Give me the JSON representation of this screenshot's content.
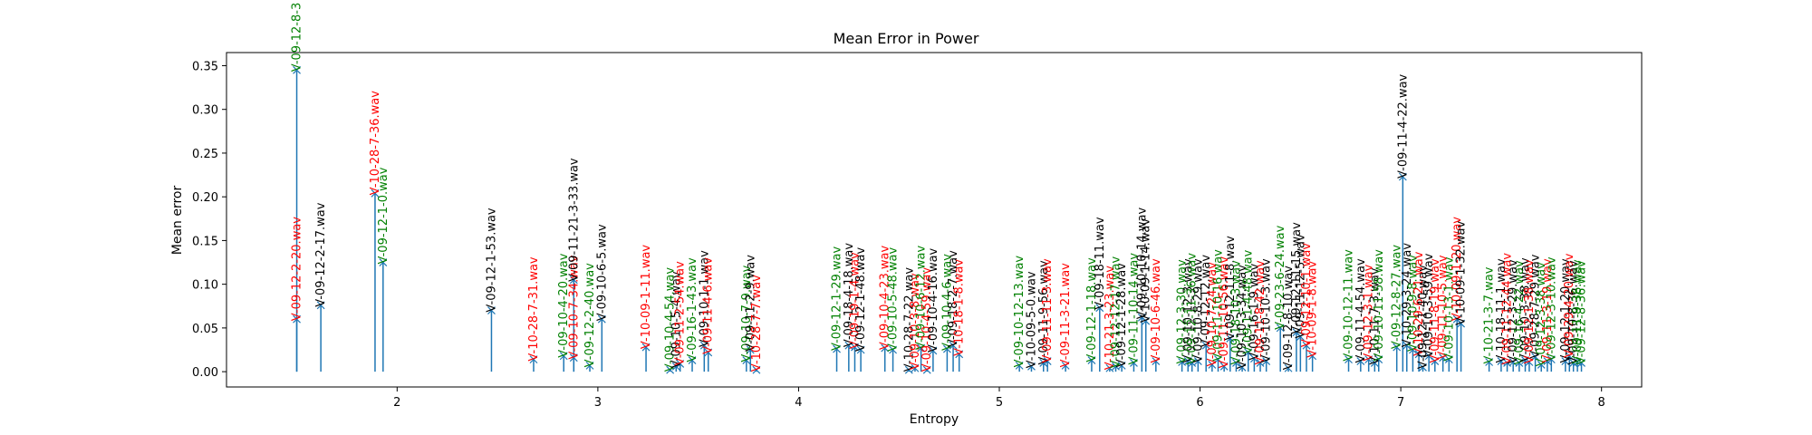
{
  "chart_data": {
    "type": "stem",
    "title": "Mean Error in Power",
    "xlabel": "Entropy",
    "ylabel": "Mean error",
    "xlim": [
      1.15,
      8.2
    ],
    "ylim": [
      -0.0175,
      0.365
    ],
    "xticks": [
      2,
      3,
      4,
      5,
      6,
      7,
      8
    ],
    "yticks": [
      "0.00",
      "0.05",
      "0.10",
      "0.15",
      "0.20",
      "0.25",
      "0.30",
      "0.35"
    ],
    "colors": {
      "stem": "#1f77b4",
      "marker": "#1f77b4"
    },
    "points": [
      {
        "x": 1.5,
        "y": 0.345,
        "label": "V-09-12-8-3",
        "color": "green"
      },
      {
        "x": 1.5,
        "y": 0.06,
        "label": "V-09-12-2-20.wav",
        "color": "red"
      },
      {
        "x": 1.62,
        "y": 0.076,
        "label": "V-09-12-2-17.wav",
        "color": "black"
      },
      {
        "x": 1.89,
        "y": 0.204,
        "label": "V-10-28-7-36.wav",
        "color": "red"
      },
      {
        "x": 1.93,
        "y": 0.125,
        "label": "V-09-12-1-0.wav",
        "color": "green"
      },
      {
        "x": 2.47,
        "y": 0.07,
        "label": "V-09-12-1-53.wav",
        "color": "black"
      },
      {
        "x": 2.68,
        "y": 0.014,
        "label": "V-10-28-7-31.wav",
        "color": "red"
      },
      {
        "x": 2.83,
        "y": 0.018,
        "label": "V-09-10-4-20.wav",
        "color": "green"
      },
      {
        "x": 2.88,
        "y": 0.016,
        "label": "V-09-10-7-34.wav",
        "color": "red"
      },
      {
        "x": 2.88,
        "y": 0.105,
        "label": "V-09-11-21-3-33.wav",
        "color": "black"
      },
      {
        "x": 2.96,
        "y": 0.007,
        "label": "V-09-12-2-40.wav",
        "color": "green"
      },
      {
        "x": 3.02,
        "y": 0.06,
        "label": "V-09-10-6-5.wav",
        "color": "black"
      },
      {
        "x": 3.24,
        "y": 0.028,
        "label": "V-10-09-1-11.wav",
        "color": "red"
      },
      {
        "x": 3.36,
        "y": 0.002,
        "label": "V-09-10-4-54.wav",
        "color": "green"
      },
      {
        "x": 3.39,
        "y": 0.006,
        "label": "V-09-10-5-4.wav",
        "color": "black"
      },
      {
        "x": 3.41,
        "y": 0.009,
        "label": "V-09-11-2-54.wav",
        "color": "red"
      },
      {
        "x": 3.47,
        "y": 0.013,
        "label": "V-09-16-1-43.wav",
        "color": "green"
      },
      {
        "x": 3.53,
        "y": 0.03,
        "label": "V-09-10-1-1.wav",
        "color": "black"
      },
      {
        "x": 3.55,
        "y": 0.022,
        "label": "V-09-11-4-6.wav",
        "color": "red"
      },
      {
        "x": 3.74,
        "y": 0.013,
        "label": "V-09-10-7-9.wav",
        "color": "green"
      },
      {
        "x": 3.76,
        "y": 0.025,
        "label": "V-09-11-2-9.wav",
        "color": "black"
      },
      {
        "x": 3.79,
        "y": 0.002,
        "label": "V-10-28-7-7.wav",
        "color": "red"
      },
      {
        "x": 4.19,
        "y": 0.026,
        "label": "V-09-12-1-29.wav",
        "color": "green"
      },
      {
        "x": 4.25,
        "y": 0.03,
        "label": "V-09-18-4-18.wav",
        "color": "black"
      },
      {
        "x": 4.28,
        "y": 0.028,
        "label": "V-09-19-1-4.wav",
        "color": "red"
      },
      {
        "x": 4.31,
        "y": 0.025,
        "label": "V-09-12-1-48.wav",
        "color": "black"
      },
      {
        "x": 4.43,
        "y": 0.027,
        "label": "V-09-10-4-23.wav",
        "color": "red"
      },
      {
        "x": 4.47,
        "y": 0.025,
        "label": "V-09-10-5-48.wav",
        "color": "green"
      },
      {
        "x": 4.55,
        "y": 0.002,
        "label": "V-10-28-7-22.wav",
        "color": "black"
      },
      {
        "x": 4.58,
        "y": 0.004,
        "label": "V-09-10-3-8.wav",
        "color": "red"
      },
      {
        "x": 4.61,
        "y": 0.027,
        "label": "V-09-10-6-12.wav",
        "color": "green"
      },
      {
        "x": 4.64,
        "y": 0.002,
        "label": "V-09-10-4-59.wav",
        "color": "red"
      },
      {
        "x": 4.67,
        "y": 0.024,
        "label": "V-09-10-4-16.wav",
        "color": "black"
      },
      {
        "x": 4.74,
        "y": 0.026,
        "label": "V-09-10-4-6.wav",
        "color": "green"
      },
      {
        "x": 4.77,
        "y": 0.03,
        "label": "V-09-18-2-7.wav",
        "color": "black"
      },
      {
        "x": 4.8,
        "y": 0.02,
        "label": "V-10-18-1-8.wav",
        "color": "red"
      },
      {
        "x": 5.1,
        "y": 0.007,
        "label": "V-09-10-12-13.wav",
        "color": "green"
      },
      {
        "x": 5.16,
        "y": 0.006,
        "label": "V-10-09-5-0.wav",
        "color": "black"
      },
      {
        "x": 5.22,
        "y": 0.01,
        "label": "V-09-11-9-56.wav",
        "color": "black"
      },
      {
        "x": 5.24,
        "y": 0.012,
        "label": "V-09-11-11-3.wav",
        "color": "red"
      },
      {
        "x": 5.33,
        "y": 0.007,
        "label": "V-09-11-3-21.wav",
        "color": "red"
      },
      {
        "x": 5.46,
        "y": 0.013,
        "label": "V-09-12-1-18.wav",
        "color": "green"
      },
      {
        "x": 5.5,
        "y": 0.073,
        "label": "V-09-18-11.wav",
        "color": "black"
      },
      {
        "x": 5.55,
        "y": 0.004,
        "label": "V-10-21-3-23.wav",
        "color": "red"
      },
      {
        "x": 5.58,
        "y": 0.006,
        "label": "V-09-12-12-17.wav",
        "color": "green"
      },
      {
        "x": 5.61,
        "y": 0.007,
        "label": "V-09-12-1-28.wav",
        "color": "black"
      },
      {
        "x": 5.67,
        "y": 0.01,
        "label": "V-09-11-10-14.wav",
        "color": "green"
      },
      {
        "x": 5.71,
        "y": 0.062,
        "label": "V-09-10-10-14.wav",
        "color": "black"
      },
      {
        "x": 5.73,
        "y": 0.058,
        "label": "V-10-09-1-14.wav",
        "color": "black"
      },
      {
        "x": 5.78,
        "y": 0.012,
        "label": "V-09-10-6-46.wav",
        "color": "red"
      },
      {
        "x": 5.91,
        "y": 0.011,
        "label": "V-09-12-3-30.wav",
        "color": "green"
      },
      {
        "x": 5.94,
        "y": 0.012,
        "label": "V-09-10-12-3.wav",
        "color": "black"
      },
      {
        "x": 5.96,
        "y": 0.01,
        "label": "V-09-12-11-36.wav",
        "color": "green"
      },
      {
        "x": 5.99,
        "y": 0.012,
        "label": "V-09-10-8-29.wav",
        "color": "black"
      },
      {
        "x": 6.03,
        "y": 0.03,
        "label": "V-09-12-12.wav",
        "color": "black"
      },
      {
        "x": 6.06,
        "y": 0.008,
        "label": "V-09-10-7-24.wav",
        "color": "red"
      },
      {
        "x": 6.09,
        "y": 0.014,
        "label": "V-09-11-10-16.wav",
        "color": "green"
      },
      {
        "x": 6.12,
        "y": 0.006,
        "label": "V-09-11-10-56.wav",
        "color": "red"
      },
      {
        "x": 6.15,
        "y": 0.038,
        "label": "V-09-12-11-8.wav",
        "color": "black"
      },
      {
        "x": 6.18,
        "y": 0.01,
        "label": "V-09-18-10-3.wav",
        "color": "green"
      },
      {
        "x": 6.21,
        "y": 0.005,
        "label": "V-09-10-3-34.wav",
        "color": "black"
      },
      {
        "x": 6.24,
        "y": 0.022,
        "label": "V-09-11-4-48.wav",
        "color": "green"
      },
      {
        "x": 6.27,
        "y": 0.015,
        "label": "V-09-16-1-9.wav",
        "color": "black"
      },
      {
        "x": 6.3,
        "y": 0.01,
        "label": "V-09-11-8-42.wav",
        "color": "red"
      },
      {
        "x": 6.33,
        "y": 0.012,
        "label": "V-09-10-10-3.wav",
        "color": "black"
      },
      {
        "x": 6.4,
        "y": 0.05,
        "label": "V-09-23-6-24.wav",
        "color": "green"
      },
      {
        "x": 6.44,
        "y": 0.004,
        "label": "V-09-12-8-10.wav",
        "color": "black"
      },
      {
        "x": 6.48,
        "y": 0.045,
        "label": "V-09-12-11-15.wav",
        "color": "black"
      },
      {
        "x": 6.5,
        "y": 0.04,
        "label": "V-09-11-12-5.wav",
        "color": "black"
      },
      {
        "x": 6.53,
        "y": 0.03,
        "label": "V-09-12-10-1.wav",
        "color": "red"
      },
      {
        "x": 6.56,
        "y": 0.018,
        "label": "V-10-09-1-8.wav",
        "color": "red"
      },
      {
        "x": 6.74,
        "y": 0.014,
        "label": "V-09-10-12-11.wav",
        "color": "green"
      },
      {
        "x": 6.8,
        "y": 0.012,
        "label": "V-09-11-4-54.wav",
        "color": "black"
      },
      {
        "x": 6.84,
        "y": 0.014,
        "label": "V-09-12-3-1.wav",
        "color": "red"
      },
      {
        "x": 6.87,
        "y": 0.01,
        "label": "V-10-11-7-3.wav",
        "color": "black"
      },
      {
        "x": 6.89,
        "y": 0.014,
        "label": "V-09-10-11-58.wav",
        "color": "green"
      },
      {
        "x": 6.98,
        "y": 0.028,
        "label": "V-09-12-8-27.wav",
        "color": "green"
      },
      {
        "x": 7.01,
        "y": 0.223,
        "label": "V-09-11-4-22.wav",
        "color": "black"
      },
      {
        "x": 7.03,
        "y": 0.03,
        "label": "V-10-29-3-24.wav",
        "color": "black"
      },
      {
        "x": 7.06,
        "y": 0.025,
        "label": "V-09-10-9-8.wav",
        "color": "green"
      },
      {
        "x": 7.09,
        "y": 0.02,
        "label": "V-10-29-6-21.wav",
        "color": "red"
      },
      {
        "x": 7.11,
        "y": 0.005,
        "label": "V-09-12-1-40.wav",
        "color": "black"
      },
      {
        "x": 7.14,
        "y": 0.018,
        "label": "V-09-10-3-59.wav",
        "color": "black"
      },
      {
        "x": 7.17,
        "y": 0.012,
        "label": "V-09-11-8-19.wav",
        "color": "red"
      },
      {
        "x": 7.21,
        "y": 0.016,
        "label": "V-09-11-10-5.wav",
        "color": "red"
      },
      {
        "x": 7.24,
        "y": 0.014,
        "label": "V-09-10-13-1.wav",
        "color": "green"
      },
      {
        "x": 7.28,
        "y": 0.06,
        "label": "V-10-09-1-20.wav",
        "color": "red"
      },
      {
        "x": 7.3,
        "y": 0.055,
        "label": "V-10-09-1-32.wav",
        "color": "black"
      },
      {
        "x": 7.44,
        "y": 0.011,
        "label": "V-10-21-3-7.wav",
        "color": "green"
      },
      {
        "x": 7.5,
        "y": 0.012,
        "label": "V-10-18-11-1.wav",
        "color": "black"
      },
      {
        "x": 7.53,
        "y": 0.01,
        "label": "V-09-11-12-44.wav",
        "color": "red"
      },
      {
        "x": 7.56,
        "y": 0.011,
        "label": "V-09-12-3-29.wav",
        "color": "black"
      },
      {
        "x": 7.59,
        "y": 0.01,
        "label": "V-09-16-4-22.wav",
        "color": "green"
      },
      {
        "x": 7.62,
        "y": 0.013,
        "label": "V-09-10-3-38.wav",
        "color": "black"
      },
      {
        "x": 7.64,
        "y": 0.011,
        "label": "V-09-12-1-38.wav",
        "color": "red"
      },
      {
        "x": 7.67,
        "y": 0.017,
        "label": "V-09-28-7-29.wav",
        "color": "black"
      },
      {
        "x": 7.7,
        "y": 0.008,
        "label": "V-09-12-3-38.wav",
        "color": "green"
      },
      {
        "x": 7.73,
        "y": 0.012,
        "label": "V-09-11-3-19.wav",
        "color": "red"
      },
      {
        "x": 7.75,
        "y": 0.014,
        "label": "V-09-12-3-10.wav",
        "color": "green"
      },
      {
        "x": 7.82,
        "y": 0.012,
        "label": "V-09-12-1-20.wav",
        "color": "black"
      },
      {
        "x": 7.84,
        "y": 0.018,
        "label": "V-09-29-4-20.wav",
        "color": "red"
      },
      {
        "x": 7.86,
        "y": 0.01,
        "label": "V-09-10-8-36.wav",
        "color": "black"
      },
      {
        "x": 7.88,
        "y": 0.011,
        "label": "V-09-11-9-36.wav",
        "color": "green"
      },
      {
        "x": 7.9,
        "y": 0.01,
        "label": "V-09-12-8-36.wav",
        "color": "green"
      }
    ]
  }
}
